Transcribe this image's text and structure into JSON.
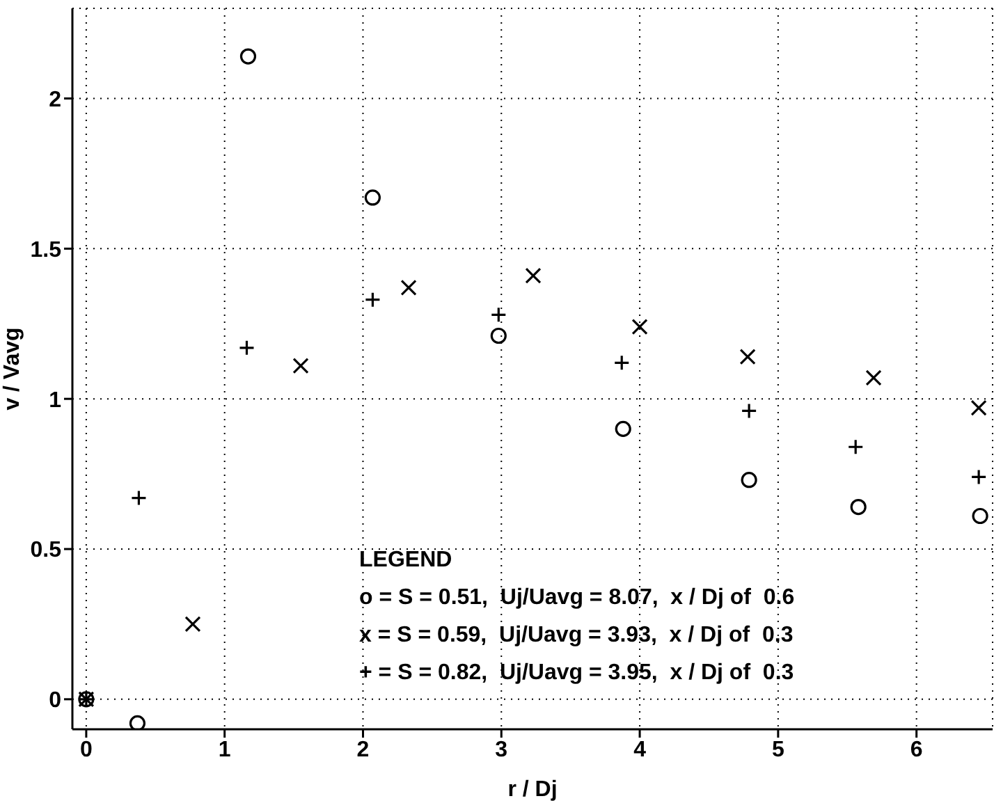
{
  "chart_data": {
    "type": "scatter",
    "xlabel": "r / Dj",
    "ylabel": "v / Vavg",
    "xlim": [
      -0.1,
      6.55
    ],
    "xticks": [
      0,
      1,
      2,
      3,
      4,
      5,
      6
    ],
    "ylim": [
      -0.1,
      2.3
    ],
    "yticks": [
      0,
      0.5,
      1,
      1.5,
      2
    ],
    "grid": true,
    "series": [
      {
        "color": "#000000",
        "marker": "circle",
        "x": [
          0,
          0.37,
          1.17,
          2.07,
          2.98,
          3.88,
          4.79,
          5.58,
          6.46
        ],
        "values": [
          0,
          -0.08,
          2.14,
          1.67,
          1.21,
          0.9,
          0.73,
          0.64,
          0.61
        ]
      },
      {
        "color": "#000000",
        "marker": "x",
        "x": [
          0,
          0.77,
          1.55,
          2.33,
          3.23,
          4.0,
          4.78,
          5.69,
          6.45
        ],
        "values": [
          0,
          0.25,
          1.11,
          1.37,
          1.41,
          1.24,
          1.14,
          1.07,
          0.97
        ]
      },
      {
        "color": "#000000",
        "marker": "cross",
        "x": [
          0,
          0.38,
          1.16,
          2.07,
          2.98,
          3.87,
          4.79,
          5.56,
          6.45
        ],
        "values": [
          0,
          0.67,
          1.17,
          1.33,
          1.28,
          1.12,
          0.96,
          0.84,
          0.74
        ]
      }
    ],
    "annotations": [
      "LEGEND",
      "o = S = 0.51,  Uj/Uavg = 8.07,  x / Dj of  0.6",
      "x = S = 0.59,  Uj/Uavg = 3.93,  x / Dj of  0.3",
      "+ = S = 0.82,  Uj/Uavg = 3.95,  x / Dj of  0.3"
    ]
  }
}
